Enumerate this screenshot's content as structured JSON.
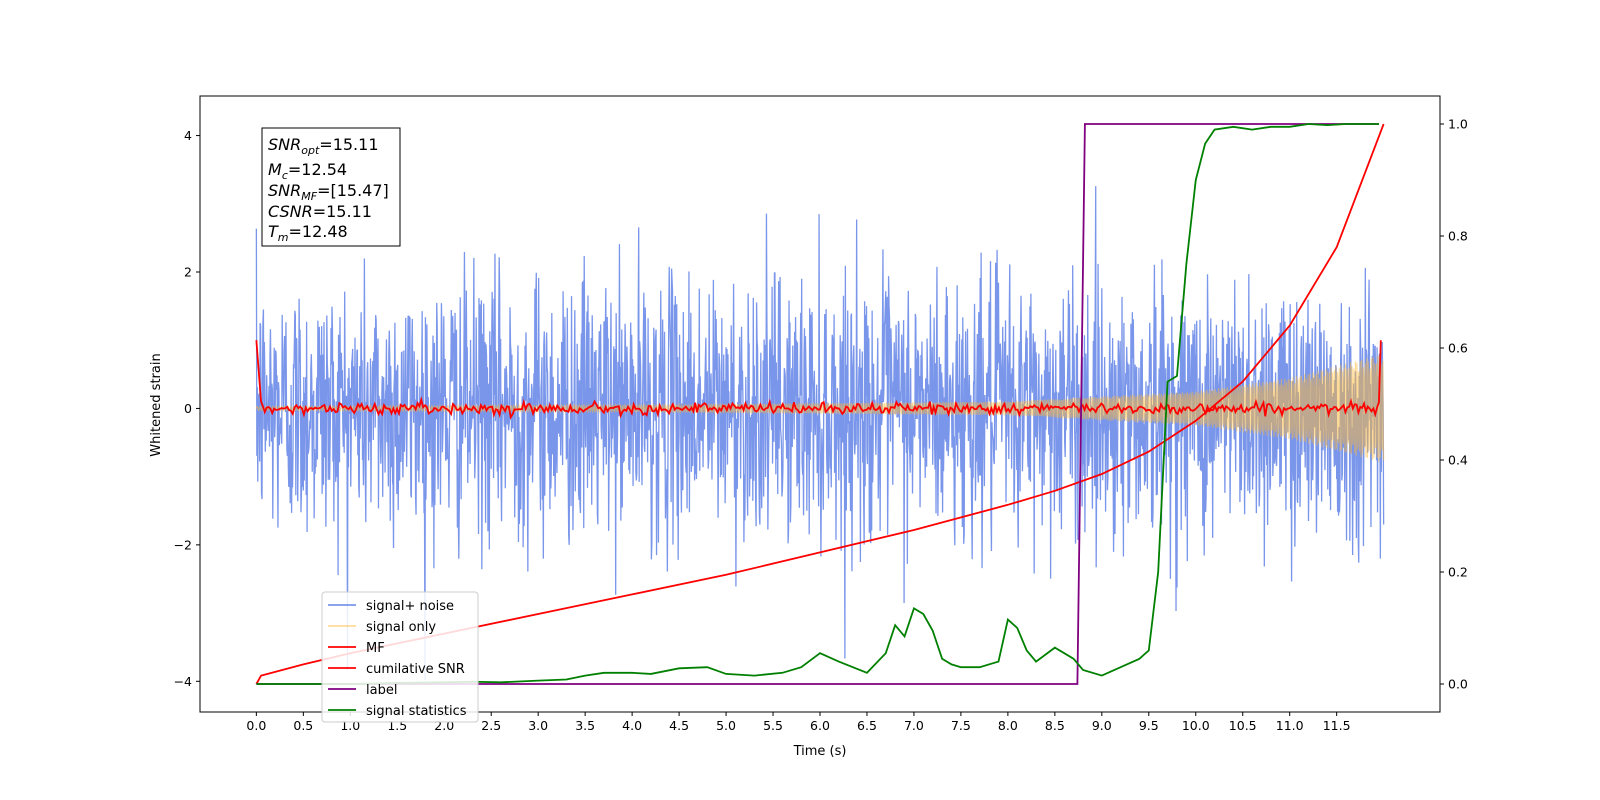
{
  "chart_data": {
    "type": "line",
    "xlabel": "Time (s)",
    "ylabel": "Whitened strain",
    "xlim": [
      -0.6,
      12.6
    ],
    "ylim_left": [
      -4.45,
      4.58
    ],
    "ylim_right": [
      -0.05,
      1.05
    ],
    "x_ticks": [
      0.0,
      0.5,
      1.0,
      1.5,
      2.0,
      2.5,
      3.0,
      3.5,
      4.0,
      4.5,
      5.0,
      5.5,
      6.0,
      6.5,
      7.0,
      7.5,
      8.0,
      8.5,
      9.0,
      9.5,
      10.0,
      10.5,
      11.0,
      11.5
    ],
    "x_tick_labels": [
      "0.0",
      "0.5",
      "1.0",
      "1.5",
      "2.0",
      "2.5",
      "3.0",
      "3.5",
      "4.0",
      "4.5",
      "5.0",
      "5.5",
      "6.0",
      "6.5",
      "7.0",
      "7.5",
      "8.0",
      "8.5",
      "9.0",
      "9.5",
      "10.0",
      "10.5",
      "11.0",
      "11.5"
    ],
    "y_left_ticks": [
      -4,
      -2,
      0,
      2,
      4
    ],
    "y_left_tick_labels": [
      "−4",
      "−2",
      "0",
      "2",
      "4"
    ],
    "y_right_ticks": [
      0.0,
      0.2,
      0.4,
      0.6,
      0.8,
      1.0
    ],
    "y_right_tick_labels": [
      "0.0",
      "0.2",
      "0.4",
      "0.6",
      "0.8",
      "1.0"
    ],
    "grid": false,
    "legend_position": "lower-left",
    "annotation_position": "top-left",
    "annotation": [
      {
        "base": "SNR",
        "sub": "opt",
        "value": "=15.11"
      },
      {
        "base": "M",
        "sub": "c",
        "value": "=12.54"
      },
      {
        "base": "SNR",
        "sub": "MF",
        "value": "=[15.47]"
      },
      {
        "base": "CSNR",
        "sub": "",
        "value": "=15.11"
      },
      {
        "base": "T",
        "sub": "m",
        "value": "=12.48"
      }
    ],
    "series": [
      {
        "name": "signal+ noise",
        "axis": "left",
        "color": "#4169e1",
        "opacity": 0.7,
        "description_range": {
          "x": [
            0.0,
            12.0
          ],
          "y": [
            -4.05,
            4.15
          ]
        }
      },
      {
        "name": "signal only",
        "axis": "left",
        "color": "#ffb732",
        "opacity": 0.5,
        "envelope": {
          "x": [
            0.0,
            4.0,
            8.0,
            10.0,
            11.0,
            12.0
          ],
          "amplitude": [
            0.03,
            0.05,
            0.1,
            0.25,
            0.45,
            0.8
          ]
        }
      },
      {
        "name": "MF",
        "axis": "left",
        "color": "#ff0000",
        "description_range": {
          "x": [
            0.0,
            12.0
          ],
          "y": [
            -0.15,
            1.0
          ]
        }
      },
      {
        "name": "cumilative SNR",
        "axis": "right",
        "color": "#ff0000",
        "x": [
          0.0,
          0.05,
          0.5,
          1.0,
          2.0,
          3.0,
          4.0,
          5.0,
          6.0,
          7.0,
          8.0,
          8.5,
          9.0,
          9.5,
          10.0,
          10.5,
          11.0,
          11.5,
          12.0
        ],
        "y": [
          0.0,
          0.015,
          0.035,
          0.055,
          0.09,
          0.125,
          0.16,
          0.195,
          0.235,
          0.275,
          0.32,
          0.345,
          0.375,
          0.415,
          0.47,
          0.54,
          0.64,
          0.78,
          1.0
        ]
      },
      {
        "name": "label",
        "axis": "right",
        "color": "#800080",
        "x": [
          0.0,
          8.74,
          8.82,
          11.95
        ],
        "y": [
          0.0,
          0.0,
          1.0,
          1.0
        ]
      },
      {
        "name": "signal statistics",
        "axis": "right",
        "color": "#008000",
        "x": [
          0.0,
          0.5,
          1.0,
          1.5,
          2.0,
          2.3,
          2.6,
          3.0,
          3.3,
          3.5,
          3.7,
          4.0,
          4.2,
          4.5,
          4.8,
          5.0,
          5.3,
          5.6,
          5.8,
          6.0,
          6.2,
          6.5,
          6.7,
          6.8,
          6.9,
          7.0,
          7.1,
          7.2,
          7.3,
          7.4,
          7.5,
          7.7,
          7.9,
          8.0,
          8.1,
          8.2,
          8.3,
          8.5,
          8.6,
          8.7,
          8.8,
          9.0,
          9.2,
          9.4,
          9.5,
          9.6,
          9.7,
          9.8,
          9.9,
          10.0,
          10.1,
          10.2,
          10.4,
          10.6,
          10.8,
          11.0,
          11.2,
          11.4,
          11.6,
          11.8,
          11.95
        ],
        "y": [
          0.0,
          0.0,
          0.0,
          0.002,
          0.003,
          0.004,
          0.003,
          0.006,
          0.008,
          0.015,
          0.02,
          0.02,
          0.018,
          0.028,
          0.03,
          0.018,
          0.015,
          0.02,
          0.03,
          0.055,
          0.04,
          0.02,
          0.055,
          0.105,
          0.085,
          0.135,
          0.125,
          0.095,
          0.045,
          0.035,
          0.03,
          0.03,
          0.04,
          0.115,
          0.1,
          0.06,
          0.04,
          0.065,
          0.055,
          0.045,
          0.025,
          0.015,
          0.03,
          0.045,
          0.06,
          0.2,
          0.54,
          0.55,
          0.75,
          0.9,
          0.965,
          0.99,
          0.995,
          0.99,
          0.995,
          0.995,
          1.0,
          0.998,
          1.0,
          1.0,
          1.0
        ]
      }
    ]
  }
}
